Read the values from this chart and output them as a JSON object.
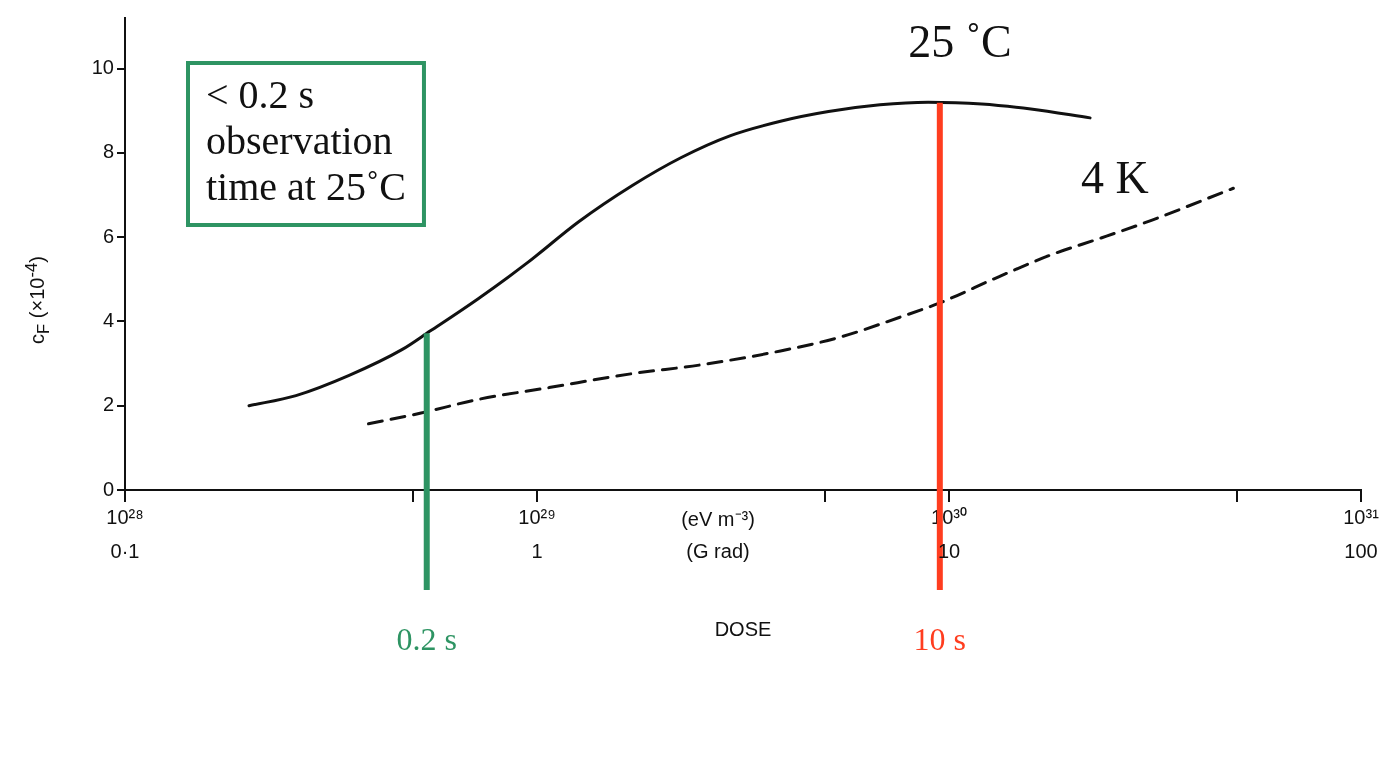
{
  "chart_data": {
    "type": "line",
    "xlabel": "DOSE",
    "ylabel": "c$_{F}$  (×10$^{-4}$)",
    "log": "x",
    "grid": false,
    "legend": false,
    "marker": "none",
    "xlim": [
      1e+28,
      1e+31
    ],
    "ylim": [
      0,
      11.2
    ],
    "xticks": [
      {
        "value": 1e+28,
        "label": "10²⁸"
      },
      {
        "value": 5e+28,
        "label": null
      },
      {
        "value": 1e+29,
        "label": "10²⁹"
      },
      {
        "value": 5e+29,
        "label": null
      },
      {
        "value": 1e+30,
        "label": "10³⁰"
      },
      {
        "value": 5e+30,
        "label": null
      },
      {
        "value": 1e+31,
        "label": "10³¹"
      }
    ],
    "yticks": [
      0,
      2,
      4,
      6,
      8,
      10
    ],
    "series": [
      {
        "name": "25 ˚C",
        "color": "#111111",
        "line_style": "solid",
        "x": [
          2e+28,
          2.6e+28,
          3.5e+28,
          4.7e+28,
          5.5e+28,
          7.2e+28,
          9.5e+28,
          1.26e+29,
          1.7e+29,
          2.24e+29,
          2.95e+29,
          3.9e+29,
          5.1e+29,
          6.8e+29,
          8.9e+29,
          1.2e+30,
          1.58e+30,
          2.2e+30
        ],
        "values": [
          2.0,
          2.24,
          2.72,
          3.33,
          3.77,
          4.54,
          5.4,
          6.36,
          7.22,
          7.89,
          8.41,
          8.75,
          8.98,
          9.14,
          9.2,
          9.16,
          9.04,
          8.83
        ]
      },
      {
        "name": "4 K",
        "color": "#111111",
        "line_style": "dashed",
        "x": [
          3.9e+28,
          5.2e+28,
          7.2e+28,
          1.07e+29,
          1.7e+29,
          2.5e+29,
          3.9e+29,
          5.5e+29,
          7.6e+29,
          9.5e+29,
          1.32e+30,
          1.78e+30,
          2.34e+30,
          3.1e+30,
          4.9e+30
        ],
        "values": [
          1.57,
          1.82,
          2.15,
          2.43,
          2.76,
          2.97,
          3.3,
          3.64,
          4.1,
          4.44,
          5.06,
          5.59,
          5.98,
          6.4,
          7.16
        ]
      }
    ],
    "ref_lines": [
      {
        "axis": "x",
        "value": 5.4e+28,
        "label": "0.2 s",
        "color": "#2e9463"
      },
      {
        "axis": "x",
        "value": 9.5e+29,
        "label": "10 s",
        "color": "#ff3d1f"
      }
    ],
    "annotations": [
      "< 0.2 s\nobservation\ntime at 25˚C",
      "(eV m⁻³)",
      "(G rad)",
      "0·1",
      "1",
      "10",
      "100"
    ]
  }
}
